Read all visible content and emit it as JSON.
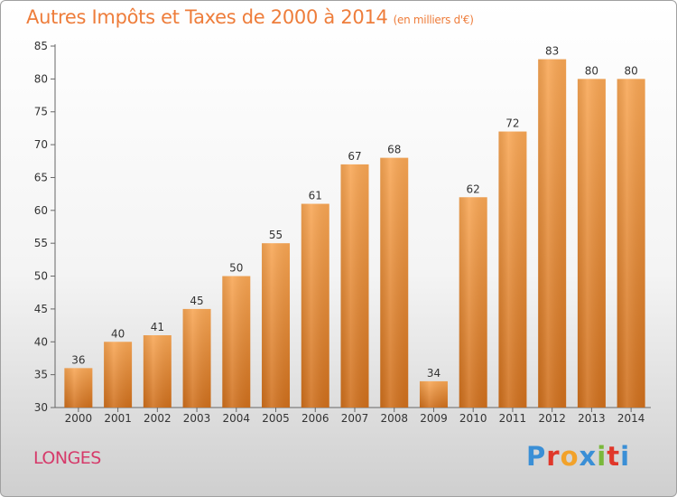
{
  "header": {
    "title": "Autres Impôts et Taxes de 2000 à 2014",
    "unit": "(en milliers d'€)"
  },
  "footer": {
    "place": "LONGES",
    "logo_letters": [
      "P",
      "r",
      "o",
      "x",
      "i",
      "t",
      "i"
    ],
    "logo_colors": [
      "#3a8fd6",
      "#e0372a",
      "#f2a22a",
      "#3a8fd6",
      "#7ab83a",
      "#e0372a",
      "#3a8fd6"
    ]
  },
  "chart_data": {
    "type": "bar",
    "categories": [
      "2000",
      "2001",
      "2002",
      "2003",
      "2004",
      "2005",
      "2006",
      "2007",
      "2008",
      "2009",
      "2010",
      "2011",
      "2012",
      "2013",
      "2014"
    ],
    "values": [
      36,
      40,
      41,
      45,
      50,
      55,
      61,
      67,
      68,
      34,
      62,
      72,
      83,
      80,
      80
    ],
    "ylim": [
      30,
      85
    ],
    "yticks": [
      30,
      35,
      40,
      45,
      50,
      55,
      60,
      65,
      70,
      75,
      80,
      85
    ],
    "title": "Autres Impôts et Taxes de 2000 à 2014",
    "xlabel": "",
    "ylabel": "",
    "grid": false,
    "bar_color_top": "#f8a654",
    "bar_color_bottom": "#cf6f1c"
  }
}
